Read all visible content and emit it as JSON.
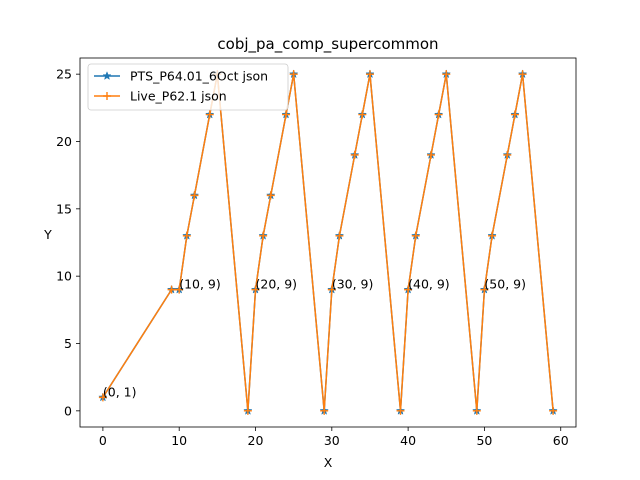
{
  "chart_data": {
    "type": "line",
    "title": "cobj_pa_comp_supercommon",
    "xlabel": "X",
    "ylabel": "Y",
    "xlim": [
      -3.0,
      62.0
    ],
    "ylim": [
      -1.2,
      26.2
    ],
    "xticks": [
      0,
      10,
      20,
      30,
      40,
      50,
      60
    ],
    "yticks": [
      0,
      5,
      10,
      15,
      20,
      25
    ],
    "legend_position": "top-left",
    "grid": false,
    "series": [
      {
        "name": "PTS_P64.01_6Oct json",
        "color": "#1f77b4",
        "marker": "star",
        "x": [
          0,
          9,
          10,
          11,
          12,
          14,
          15,
          19,
          20,
          21,
          22,
          24,
          25,
          29,
          30,
          31,
          33,
          34,
          35,
          39,
          40,
          41,
          43,
          44,
          45,
          49,
          50,
          51,
          53,
          54,
          55,
          59
        ],
        "y": [
          1,
          9,
          9,
          13,
          16,
          22,
          25,
          0,
          9,
          13,
          16,
          22,
          25,
          0,
          9,
          13,
          19,
          22,
          25,
          0,
          9,
          13,
          19,
          22,
          25,
          0,
          9,
          13,
          19,
          22,
          25,
          0
        ]
      },
      {
        "name": "Live_P62.1 json",
        "color": "#ff7f0e",
        "marker": "plus",
        "x": [
          0,
          9,
          10,
          11,
          12,
          14,
          15,
          19,
          20,
          21,
          22,
          24,
          25,
          29,
          30,
          31,
          33,
          34,
          35,
          39,
          40,
          41,
          43,
          44,
          45,
          49,
          50,
          51,
          53,
          54,
          55,
          59
        ],
        "y": [
          1,
          9,
          9,
          13,
          16,
          22,
          25,
          0,
          9,
          13,
          16,
          22,
          25,
          0,
          9,
          13,
          19,
          22,
          25,
          0,
          9,
          13,
          19,
          22,
          25,
          0,
          9,
          13,
          19,
          22,
          25,
          0
        ]
      }
    ],
    "annotations": [
      {
        "text": "(0, 1)",
        "x": 0,
        "y": 1
      },
      {
        "text": "(10, 9)",
        "x": 10,
        "y": 9
      },
      {
        "text": "(20, 9)",
        "x": 20,
        "y": 9
      },
      {
        "text": "(30, 9)",
        "x": 30,
        "y": 9
      },
      {
        "text": "(40, 9)",
        "x": 40,
        "y": 9
      },
      {
        "text": "(50, 9)",
        "x": 50,
        "y": 9
      }
    ]
  }
}
